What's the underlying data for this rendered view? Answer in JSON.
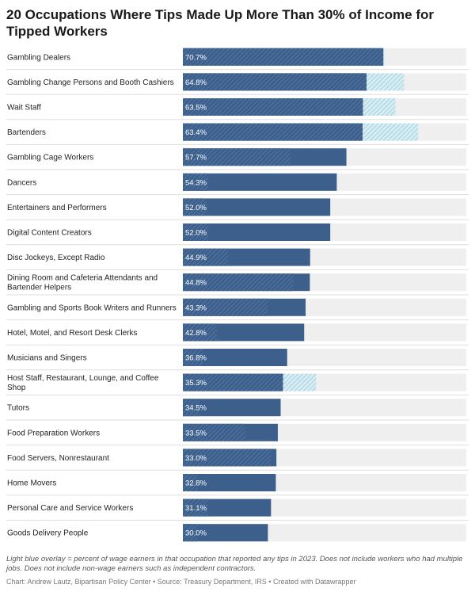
{
  "title": "20 Occupations Where Tips Made Up More Than 30% of Income for Tipped Workers",
  "note": "Light blue overlay = percent of wage earners in that occupation that reported any tips in 2023. Does not include workers who had multiple jobs. Does not include non-wage earners such as independent contractors.",
  "credit": "Chart: Andrew Lautz, Bipartisan Policy Center • Source: Treasury Department, IRS • Created with Datawrapper",
  "colors": {
    "bar": "#3d5f8c",
    "overlay": "#a8d3e2",
    "track": "#efefef",
    "separator": "#dddddd"
  },
  "chart_data": {
    "type": "bar",
    "orientation": "horizontal",
    "xlim": [
      0,
      100
    ],
    "categories": [
      "Gambling Dealers",
      "Gambling Change Persons and Booth Cashiers",
      "Wait Staff",
      "Bartenders",
      "Gambling Cage Workers",
      "Dancers",
      "Entertainers and Performers",
      "Digital Content Creators",
      "Disc Jockeys, Except Radio",
      "Dining Room and Cafeteria Attendants and Bartender Helpers",
      "Gambling and Sports Book Writers and Runners",
      "Hotel, Motel, and Resort Desk Clerks",
      "Musicians and Singers",
      "Host Staff, Restaurant, Lounge, and Coffee Shop",
      "Tutors",
      "Food Preparation Workers",
      "Food Servers, Nonrestaurant",
      "Home Movers",
      "Personal Care and Service Workers",
      "Goods Delivery People"
    ],
    "series": [
      {
        "name": "Tips as percent of income",
        "values": [
          70.7,
          64.8,
          63.5,
          63.4,
          57.7,
          54.3,
          52.0,
          52.0,
          44.9,
          44.8,
          43.3,
          42.8,
          36.8,
          35.3,
          34.5,
          33.5,
          33.0,
          32.8,
          31.1,
          30.0
        ],
        "labels": [
          "70.7%",
          "64.8%",
          "63.5%",
          "63.4%",
          "57.7%",
          "54.3%",
          "52.0%",
          "52.0%",
          "44.9%",
          "44.8%",
          "43.3%",
          "42.8%",
          "36.8%",
          "35.3%",
          "34.5%",
          "33.5%",
          "33.0%",
          "32.8%",
          "31.1%",
          "30.0%"
        ]
      },
      {
        "name": "Percent of wage earners reporting any tips (2023)",
        "values": [
          71,
          78,
          75,
          83,
          38,
          9,
          8,
          9,
          16,
          39,
          30,
          12,
          7,
          47,
          6,
          22,
          31,
          5,
          9,
          5
        ]
      }
    ]
  }
}
